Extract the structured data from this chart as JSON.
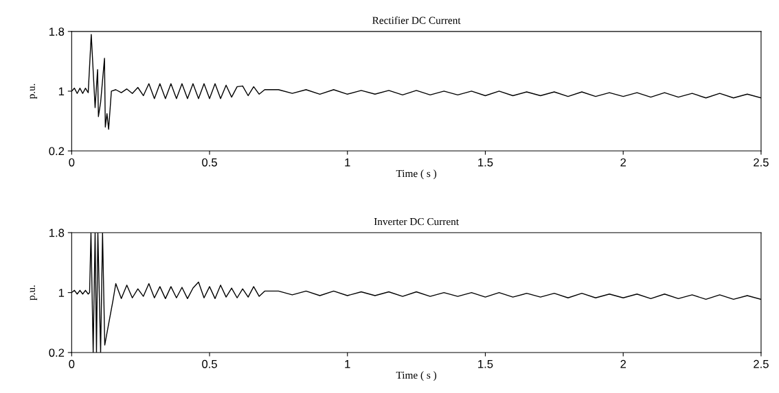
{
  "chart_data": [
    {
      "type": "line",
      "title": "Rectifier DC Current",
      "xlabel": "Time ( s )",
      "ylabel": "p.u.",
      "xlim": [
        0,
        2.5
      ],
      "xticks": [
        0,
        0.5,
        1,
        1.5,
        2,
        2.5
      ],
      "ylim": [
        0.2,
        1.8
      ],
      "yticks": [
        0.2,
        1,
        1.8
      ],
      "grid": false,
      "series": [
        {
          "color": "#000000",
          "x": [
            0,
            0.01,
            0.02,
            0.03,
            0.04,
            0.05,
            0.06,
            0.071,
            0.085,
            0.094,
            0.097,
            0.105,
            0.119,
            0.122,
            0.128,
            0.134,
            0.144,
            0.16,
            0.18,
            0.2,
            0.22,
            0.24,
            0.26,
            0.28,
            0.3,
            0.32,
            0.34,
            0.36,
            0.38,
            0.4,
            0.42,
            0.44,
            0.46,
            0.48,
            0.5,
            0.52,
            0.54,
            0.56,
            0.58,
            0.6,
            0.62,
            0.64,
            0.66,
            0.68,
            0.7,
            0.75,
            0.8,
            0.85,
            0.9,
            0.95,
            1.0,
            1.05,
            1.1,
            1.15,
            1.2,
            1.25,
            1.3,
            1.35,
            1.4,
            1.45,
            1.5,
            1.55,
            1.6,
            1.65,
            1.7,
            1.75,
            1.8,
            1.85,
            1.9,
            1.95,
            2.0,
            2.05,
            2.1,
            2.15,
            2.2,
            2.25,
            2.3,
            2.35,
            2.4,
            2.45,
            2.5
          ],
          "values": [
            1.0,
            1.04,
            0.97,
            1.04,
            0.97,
            1.04,
            0.98,
            1.76,
            0.78,
            1.29,
            0.66,
            0.85,
            1.44,
            0.52,
            0.7,
            0.49,
            1.0,
            1.02,
            0.98,
            1.03,
            0.97,
            1.05,
            0.94,
            1.1,
            0.9,
            1.1,
            0.9,
            1.1,
            0.9,
            1.1,
            0.9,
            1.1,
            0.9,
            1.1,
            0.9,
            1.1,
            0.9,
            1.08,
            0.92,
            1.06,
            1.07,
            0.94,
            1.06,
            0.96,
            1.02,
            1.02,
            0.97,
            1.02,
            0.96,
            1.02,
            0.96,
            1.01,
            0.96,
            1.01,
            0.95,
            1.01,
            0.95,
            1.0,
            0.95,
            1.0,
            0.94,
            1.0,
            0.94,
            0.99,
            0.94,
            0.99,
            0.93,
            0.99,
            0.93,
            0.98,
            0.93,
            0.98,
            0.92,
            0.98,
            0.92,
            0.97,
            0.91,
            0.97,
            0.91,
            0.96,
            0.91
          ]
        }
      ]
    },
    {
      "type": "line",
      "title": "Inverter DC Current",
      "xlabel": "Time ( s )",
      "ylabel": "p.u.",
      "xlim": [
        0,
        2.5
      ],
      "xticks": [
        0,
        0.5,
        1,
        1.5,
        2,
        2.5
      ],
      "ylim": [
        0.2,
        1.8
      ],
      "yticks": [
        0.2,
        1,
        1.8
      ],
      "grid": false,
      "series": [
        {
          "color": "#000000",
          "x": [
            0,
            0.01,
            0.02,
            0.03,
            0.04,
            0.05,
            0.06,
            0.065,
            0.07,
            0.078,
            0.085,
            0.09,
            0.095,
            0.105,
            0.112,
            0.12,
            0.13,
            0.14,
            0.15,
            0.16,
            0.18,
            0.2,
            0.22,
            0.24,
            0.26,
            0.28,
            0.3,
            0.32,
            0.34,
            0.36,
            0.38,
            0.4,
            0.42,
            0.44,
            0.46,
            0.48,
            0.5,
            0.52,
            0.54,
            0.56,
            0.58,
            0.6,
            0.62,
            0.64,
            0.66,
            0.68,
            0.7,
            0.75,
            0.8,
            0.85,
            0.9,
            0.95,
            1.0,
            1.05,
            1.1,
            1.15,
            1.2,
            1.25,
            1.3,
            1.35,
            1.4,
            1.45,
            1.5,
            1.55,
            1.6,
            1.65,
            1.7,
            1.75,
            1.8,
            1.85,
            1.9,
            1.95,
            2.0,
            2.05,
            2.1,
            2.15,
            2.2,
            2.25,
            2.3,
            2.35,
            2.4,
            2.45,
            2.5
          ],
          "values": [
            1.0,
            1.03,
            0.98,
            1.03,
            0.98,
            1.03,
            0.98,
            1.0,
            1.8,
            0.2,
            1.8,
            0.2,
            1.8,
            0.2,
            1.8,
            0.3,
            0.5,
            0.7,
            0.9,
            1.12,
            0.92,
            1.1,
            0.93,
            1.05,
            0.95,
            1.12,
            0.93,
            1.08,
            0.92,
            1.08,
            0.93,
            1.07,
            0.92,
            1.06,
            1.14,
            0.93,
            1.08,
            0.92,
            1.1,
            0.94,
            1.06,
            0.93,
            1.05,
            0.94,
            1.08,
            0.95,
            1.02,
            1.02,
            0.97,
            1.02,
            0.96,
            1.02,
            0.96,
            1.01,
            0.96,
            1.01,
            0.95,
            1.01,
            0.95,
            1.0,
            0.95,
            1.0,
            0.94,
            1.0,
            0.94,
            0.99,
            0.94,
            0.99,
            0.93,
            0.99,
            0.93,
            0.98,
            0.93,
            0.98,
            0.92,
            0.98,
            0.92,
            0.97,
            0.91,
            0.97,
            0.91,
            0.96,
            0.91
          ]
        }
      ]
    }
  ]
}
